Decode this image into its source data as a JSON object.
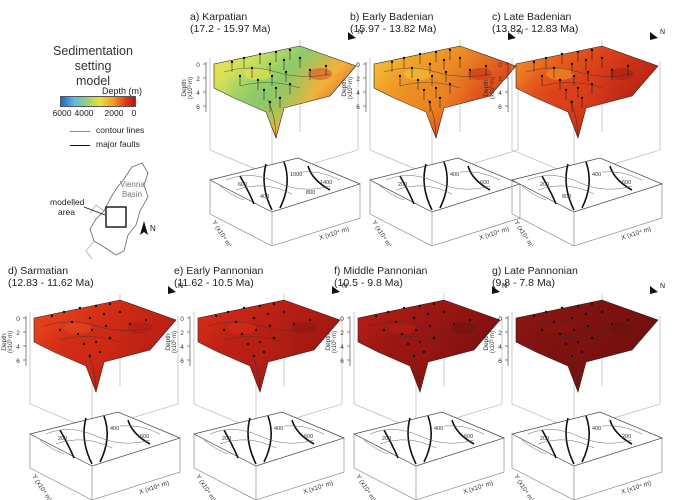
{
  "legend": {
    "title_line1": "Sedimentation setting",
    "title_line2": "model",
    "depth_label": "Depth (m)",
    "depth_ticks": [
      "6000",
      "4000",
      "2000",
      "0"
    ],
    "contour_label": "contour lines",
    "faults_label": "major faults",
    "map_basin_label_1": "Vienna",
    "map_basin_label_2": "Basin",
    "map_area_label_1": "modelled",
    "map_area_label_2": "area",
    "north": "N"
  },
  "axes": {
    "depth_label": "Depth",
    "depth_unit": "(x10³ m)",
    "depth_ticks": [
      "0",
      "2",
      "4",
      "6"
    ],
    "x_label": "X (x10⁴ m)",
    "y_label": "Y (x10⁴ m)",
    "north": "N"
  },
  "panels": [
    {
      "id": "a",
      "title_line1": "a) Karpatian",
      "title_line2": "(17.2 - 15.97 Ma)",
      "palette": [
        "#f0e34a",
        "#cfe05a",
        "#8cc96a",
        "#f2b13a",
        "#e05524"
      ],
      "contours": [
        "600",
        "1000",
        "1400",
        "400",
        "800"
      ]
    },
    {
      "id": "b",
      "title_line1": "b) Early Badenian",
      "title_line2": "(15.97 - 13.82 Ma)",
      "palette": [
        "#f6c73a",
        "#f1a52a",
        "#eb8a24",
        "#e2581e",
        "#c93417"
      ],
      "contours": [
        "200",
        "400",
        "600"
      ]
    },
    {
      "id": "c",
      "title_line1": "c) Late Badenian",
      "title_line2": "(13.82 - 12.83 Ma)",
      "palette": [
        "#f09a2c",
        "#e8651f",
        "#dc401a",
        "#c52c16",
        "#a82013"
      ],
      "contours": [
        "200",
        "400",
        "600",
        "800"
      ]
    },
    {
      "id": "d",
      "title_line1": "d) Sarmatian",
      "title_line2": "(12.83 - 11.62 Ma)",
      "palette": [
        "#e64a1e",
        "#de3a1a",
        "#cf2a16",
        "#c12214",
        "#b01c12"
      ],
      "contours": [
        "200",
        "400",
        "600"
      ]
    },
    {
      "id": "e",
      "title_line1": "e) Early Pannonian",
      "title_line2": "(11.62 - 10.5 Ma)",
      "palette": [
        "#d63019",
        "#c92616",
        "#b81f14",
        "#a81a12",
        "#951510"
      ],
      "contours": [
        "200",
        "400",
        "600"
      ]
    },
    {
      "id": "f",
      "title_line1": "f) Middle Pannonian",
      "title_line2": "(10.5 - 9.8 Ma)",
      "palette": [
        "#b81f16",
        "#a81a14",
        "#981612",
        "#871310",
        "#76110e"
      ],
      "contours": [
        "200",
        "400",
        "600"
      ]
    },
    {
      "id": "g",
      "title_line1": "g) Late Pannonian",
      "title_line2": "(9.8 - 7.8 Ma)",
      "palette": [
        "#8e1612",
        "#861411",
        "#7e1210",
        "#76110f",
        "#6e100e"
      ],
      "contours": [
        "200",
        "400",
        "200"
      ]
    }
  ]
}
